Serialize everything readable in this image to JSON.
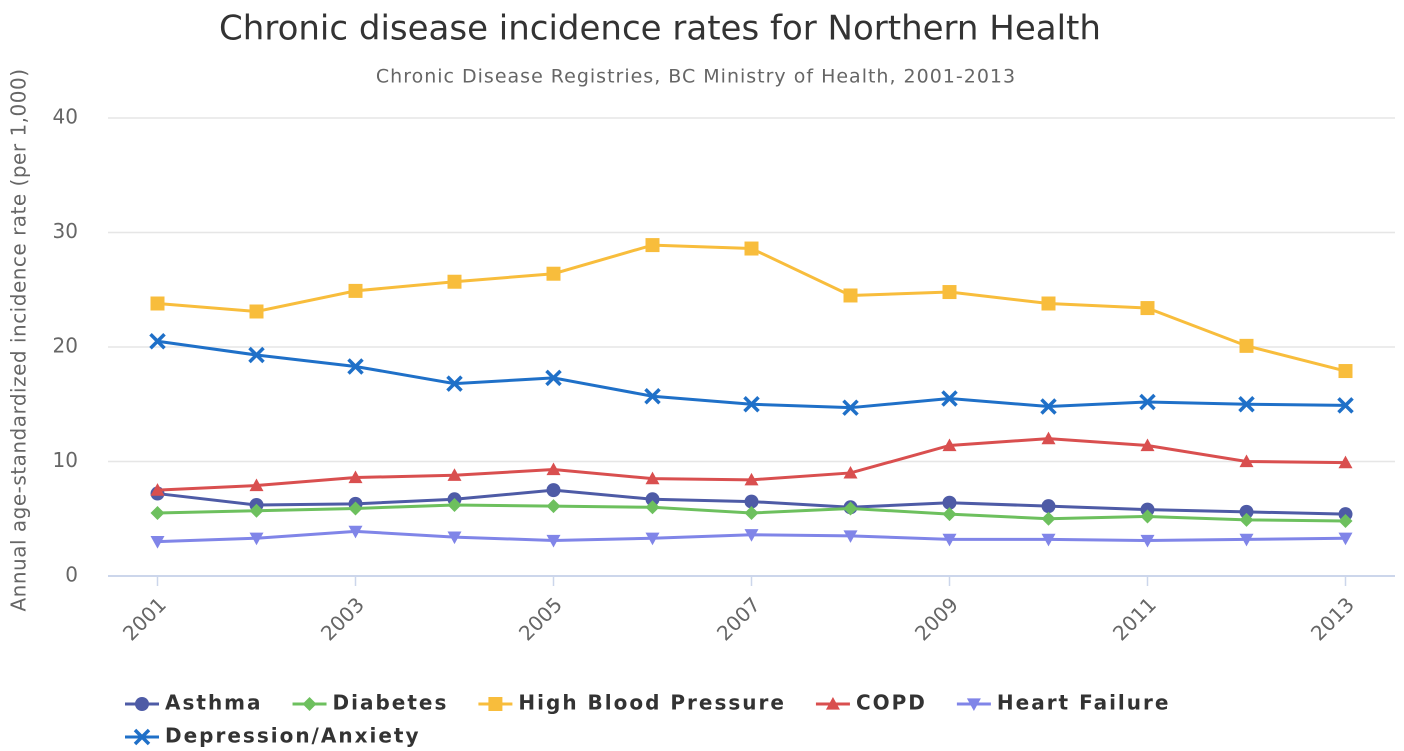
{
  "chart_data": {
    "type": "line",
    "title": "Chronic disease incidence rates for Northern Health",
    "subtitle": "Chronic Disease Registries, BC Ministry of Health, 2001-2013",
    "y_label": "Annual age-standardized incidence rate (per 1,000)",
    "x": [
      2001,
      2002,
      2003,
      2004,
      2005,
      2006,
      2007,
      2008,
      2009,
      2010,
      2011,
      2012,
      2013
    ],
    "xlim": [
      2000.5,
      2013.5
    ],
    "xticks": [
      2001,
      2003,
      2005,
      2007,
      2009,
      2011,
      2013
    ],
    "ylim": [
      0,
      40
    ],
    "yticks": [
      0,
      10,
      20,
      30,
      40
    ],
    "grid": true,
    "legend": "bottom-left",
    "series": [
      {
        "name": "Asthma",
        "color": "#4e5ba6",
        "marker": "circle",
        "values": [
          7.2,
          6.2,
          6.3,
          6.7,
          7.5,
          6.7,
          6.5,
          6.0,
          6.4,
          6.1,
          5.8,
          5.6,
          5.4
        ]
      },
      {
        "name": "Diabetes",
        "color": "#6dc05e",
        "marker": "diamond",
        "values": [
          5.5,
          5.7,
          5.9,
          6.2,
          6.1,
          6.0,
          5.5,
          5.9,
          5.4,
          5.0,
          5.2,
          4.9,
          4.8
        ]
      },
      {
        "name": "High Blood Pressure",
        "color": "#f8bd3c",
        "marker": "square",
        "values": [
          23.8,
          23.1,
          24.9,
          25.7,
          26.4,
          28.9,
          28.6,
          24.5,
          24.8,
          23.8,
          23.4,
          20.1,
          17.9
        ]
      },
      {
        "name": "COPD",
        "color": "#d94f4f",
        "marker": "triangle",
        "values": [
          7.5,
          7.9,
          8.6,
          8.8,
          9.3,
          8.5,
          8.4,
          9.0,
          11.4,
          12.0,
          11.4,
          10.0,
          9.9
        ]
      },
      {
        "name": "Heart Failure",
        "color": "#8085e8",
        "marker": "triangle-down",
        "values": [
          3.0,
          3.3,
          3.9,
          3.4,
          3.1,
          3.3,
          3.6,
          3.5,
          3.2,
          3.2,
          3.1,
          3.2,
          3.3
        ]
      },
      {
        "name": "Depression/Anxiety",
        "color": "#1f70c8",
        "marker": "x",
        "values": [
          20.5,
          19.3,
          18.3,
          16.8,
          17.3,
          15.7,
          15.0,
          14.7,
          15.5,
          14.8,
          15.2,
          15.0,
          14.9
        ]
      }
    ]
  }
}
